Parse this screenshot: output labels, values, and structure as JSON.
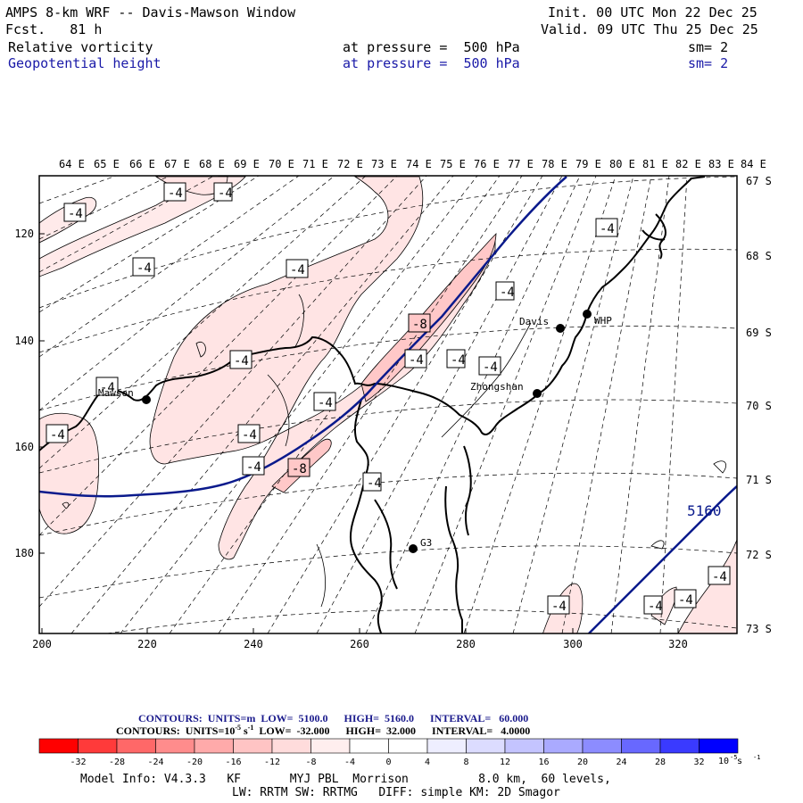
{
  "header": {
    "title": "AMPS 8-km WRF -- Davis-Mawson Window",
    "forecast": "Fcst.   81 h",
    "init": "Init. 00 UTC Mon 22 Dec 25",
    "valid": "Valid. 09 UTC Thu 25 Dec 25",
    "field1": {
      "name": "Relative vorticity",
      "level": "at pressure =  500 hPa",
      "sm": "sm= 2"
    },
    "field2": {
      "name": "Geopotential height",
      "level": "at pressure =  500 hPa",
      "sm": "sm= 2"
    }
  },
  "map": {
    "lon_labels": [
      "64 E",
      "65 E",
      "66 E",
      "67 E",
      "68 E",
      "69 E",
      "70 E",
      "71 E",
      "72 E",
      "73 E",
      "74 E",
      "75 E",
      "76 E",
      "77 E",
      "78 E",
      "79 E",
      "80 E",
      "81 E",
      "82 E",
      "83 E",
      "84 E"
    ],
    "lat_labels": [
      "67 S",
      "68 S",
      "69 S",
      "70 S",
      "71 S",
      "72 S",
      "73 S"
    ],
    "x_ticks": [
      "200",
      "220",
      "240",
      "260",
      "280",
      "300",
      "320"
    ],
    "y_ticks": [
      "120",
      "140",
      "160",
      "180"
    ],
    "stations": [
      "Mawson",
      "Davis",
      "WHP",
      "Zhongshan",
      "G3"
    ],
    "contour_labels": [
      "-4",
      "-8",
      "5160"
    ],
    "colors": {
      "height_contour": "#0a1a8c",
      "coast": "#000000",
      "grid": "#000000"
    }
  },
  "footer": {
    "contours_height": {
      "prefix": "CONTOURS:",
      "units": "UNITS=m",
      "low": "LOW=  5100.0",
      "high": "HIGH=  5160.0",
      "interval": "INTERVAL=   60.000"
    },
    "contours_vort": {
      "prefix": "CONTOURS:",
      "units_pre": "UNITS=10",
      "units_exp": "-5",
      "units_post": " s",
      "units_exp2": "-1",
      "low": "LOW=  -32.000",
      "high": "HIGH=  32.000",
      "interval": "INTERVAL=   4.0000"
    },
    "colorbar": {
      "colors": [
        "#ff0000",
        "#ff3a3a",
        "#ff6868",
        "#ff8c8c",
        "#ffaaaa",
        "#ffc4c4",
        "#ffdcdc",
        "#ffeeee",
        "#ffffff",
        "#ffffff",
        "#eeeeff",
        "#dcdcff",
        "#c4c4ff",
        "#aaaaff",
        "#8c8cff",
        "#6868ff",
        "#3a3aff",
        "#0000ff"
      ],
      "labels": [
        "-32",
        "-28",
        "-24",
        "-20",
        "-16",
        "-12",
        "-8",
        "-4",
        "0",
        "4",
        "8",
        "12",
        "16",
        "20",
        "24",
        "28",
        "32"
      ],
      "unit_pre": "10",
      "unit_exp": "-5",
      "unit_post": " s",
      "unit_exp2": "-1"
    },
    "model_info_1": "Model Info: V4.3.3   KF       MYJ PBL  Morrison          8.0 km,  60 levels,",
    "model_info_2": "LW: RRTM SW: RRTMG   DIFF: simple KM: 2D Smagor"
  }
}
